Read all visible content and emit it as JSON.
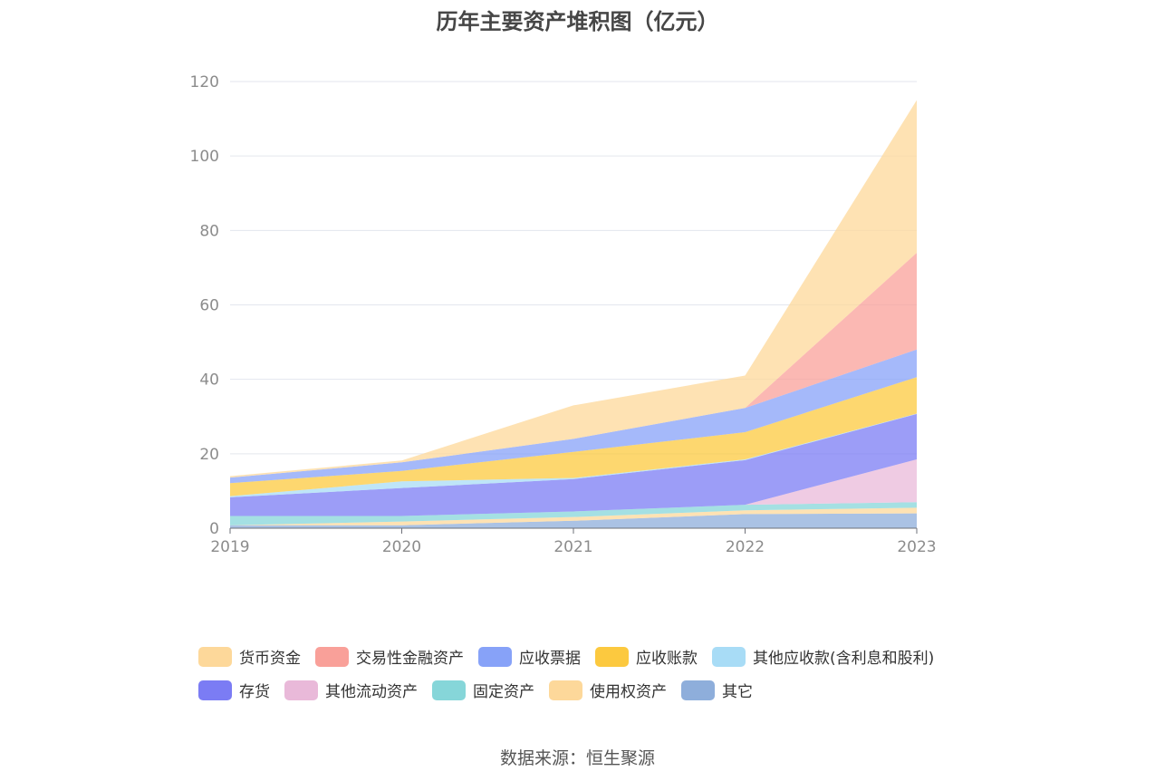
{
  "chart_data": {
    "type": "area",
    "stacked": true,
    "title": "历年主要资产堆积图（亿元）",
    "categories": [
      "2019",
      "2020",
      "2021",
      "2022",
      "2023"
    ],
    "y_ticks": [
      "0",
      "20",
      "40",
      "60",
      "80",
      "100",
      "120"
    ],
    "ylim": [
      0,
      120
    ],
    "grid": true,
    "legend_position": "bottom",
    "series": [
      {
        "name": "其它",
        "color": "#8eaedb",
        "values": [
          0.8,
          0.8,
          2.0,
          3.8,
          4.0
        ]
      },
      {
        "name": "使用权资产",
        "color": "#fdd89a",
        "values": [
          0.0,
          1.0,
          1.0,
          1.0,
          1.5
        ]
      },
      {
        "name": "固定资产",
        "color": "#86d6d9",
        "values": [
          2.5,
          1.5,
          1.5,
          1.5,
          1.5
        ]
      },
      {
        "name": "其他流动资产",
        "color": "#e9b9d9",
        "values": [
          0.0,
          0.0,
          0.0,
          0.0,
          11.5
        ]
      },
      {
        "name": "存货",
        "color": "#7b7cf4",
        "values": [
          5.0,
          7.5,
          8.7,
          12.0,
          12.2
        ]
      },
      {
        "name": "其他应收款(含利息和股利)",
        "color": "#a8dcf6",
        "values": [
          0.3,
          1.8,
          0.3,
          0.2,
          0.1
        ]
      },
      {
        "name": "应收账款",
        "color": "#fcc93f",
        "values": [
          3.5,
          2.8,
          7.0,
          7.3,
          9.8
        ]
      },
      {
        "name": "应收票据",
        "color": "#87a2f8",
        "values": [
          1.5,
          2.3,
          3.5,
          6.5,
          7.4
        ]
      },
      {
        "name": "交易性金融资产",
        "color": "#f9a099",
        "values": [
          0.0,
          0.0,
          0.0,
          0.0,
          26.0
        ]
      },
      {
        "name": "货币资金",
        "color": "#fdd89a",
        "values": [
          0.4,
          0.5,
          9.0,
          8.7,
          41.0
        ]
      }
    ]
  },
  "legend": {
    "row1": [
      {
        "label": "货币资金",
        "color": "#fdd89a"
      },
      {
        "label": "交易性金融资产",
        "color": "#f9a099"
      },
      {
        "label": "应收票据",
        "color": "#87a2f8"
      },
      {
        "label": "应收账款",
        "color": "#fcc93f"
      },
      {
        "label": "其他应收款(含利息和股利)",
        "color": "#a8dcf6"
      }
    ],
    "row2": [
      {
        "label": "存货",
        "color": "#7b7cf4"
      },
      {
        "label": "其他流动资产",
        "color": "#e9b9d9"
      },
      {
        "label": "固定资产",
        "color": "#86d6d9"
      },
      {
        "label": "使用权资产",
        "color": "#fdd89a"
      },
      {
        "label": "其它",
        "color": "#8eaedb"
      }
    ]
  },
  "source": "数据来源：恒生聚源"
}
